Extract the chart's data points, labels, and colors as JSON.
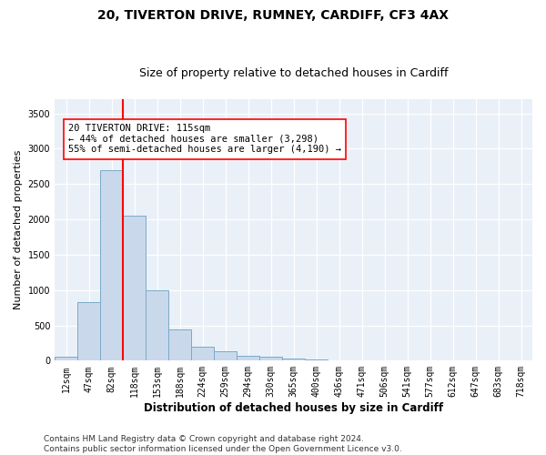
{
  "title1": "20, TIVERTON DRIVE, RUMNEY, CARDIFF, CF3 4AX",
  "title2": "Size of property relative to detached houses in Cardiff",
  "xlabel": "Distribution of detached houses by size in Cardiff",
  "ylabel": "Number of detached properties",
  "bar_color": "#c9d9eb",
  "bar_edge_color": "#7aaac8",
  "background_color": "#eaf0f8",
  "vline_color": "red",
  "vline_index": 3,
  "annotation_text": "20 TIVERTON DRIVE: 115sqm\n← 44% of detached houses are smaller (3,298)\n55% of semi-detached houses are larger (4,190) →",
  "annotation_box_color": "white",
  "annotation_box_edge": "red",
  "categories": [
    "12sqm",
    "47sqm",
    "82sqm",
    "118sqm",
    "153sqm",
    "188sqm",
    "224sqm",
    "259sqm",
    "294sqm",
    "330sqm",
    "365sqm",
    "400sqm",
    "436sqm",
    "471sqm",
    "506sqm",
    "541sqm",
    "577sqm",
    "612sqm",
    "647sqm",
    "683sqm",
    "718sqm"
  ],
  "values": [
    55,
    830,
    2700,
    2050,
    1000,
    440,
    200,
    130,
    70,
    55,
    35,
    20,
    10,
    5,
    0,
    0,
    0,
    0,
    0,
    0,
    0
  ],
  "ylim": [
    0,
    3700
  ],
  "yticks": [
    0,
    500,
    1000,
    1500,
    2000,
    2500,
    3000,
    3500
  ],
  "footer_text": "Contains HM Land Registry data © Crown copyright and database right 2024.\nContains public sector information licensed under the Open Government Licence v3.0.",
  "title1_fontsize": 10,
  "title2_fontsize": 9,
  "xlabel_fontsize": 8.5,
  "ylabel_fontsize": 8,
  "tick_fontsize": 7,
  "annotation_fontsize": 7.5,
  "footer_fontsize": 6.5
}
